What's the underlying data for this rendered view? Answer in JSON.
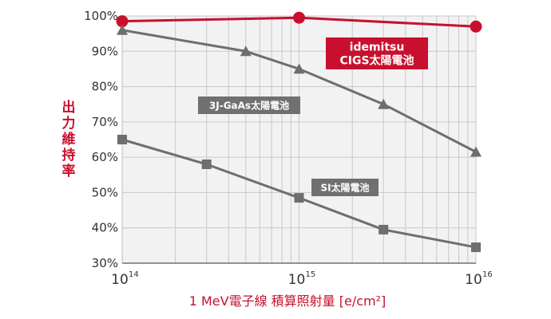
{
  "chart_data": {
    "type": "line",
    "title": "",
    "xlabel": "1 MeV電子線 積算照射量 [e/cm²]",
    "ylabel": "出力維持率",
    "x_scale": "log",
    "xlim": [
      100000000000000.0,
      1e+16
    ],
    "ylim": [
      30,
      100
    ],
    "x_ticks": [
      {
        "value": 100000000000000.0,
        "base": "10",
        "exp": "14"
      },
      {
        "value": 1000000000000000.0,
        "base": "10",
        "exp": "15"
      },
      {
        "value": 1e+16,
        "base": "10",
        "exp": "16"
      }
    ],
    "y_ticks": [
      "30%",
      "40%",
      "50%",
      "60%",
      "70%",
      "80%",
      "90%",
      "100%"
    ],
    "y_tick_values": [
      30,
      40,
      50,
      60,
      70,
      80,
      90,
      100
    ],
    "grid": true,
    "series": [
      {
        "name": "idemitsu\nCIGS太陽電池",
        "marker": "circle",
        "color": "#c8102e",
        "label_box_color": "#c8102e",
        "x": [
          100000000000000.0,
          1000000000000000.0,
          1e+16
        ],
        "y": [
          98.5,
          99.5,
          97
        ]
      },
      {
        "name": "3J-GaAs太陽電池",
        "marker": "triangle",
        "color": "#6e6e6e",
        "label_box_color": "#707070",
        "x": [
          100000000000000.0,
          500000000000000.0,
          1000000000000000.0,
          3000000000000000.0,
          1e+16
        ],
        "y": [
          96,
          90,
          85,
          75,
          61.5
        ]
      },
      {
        "name": "SI太陽電池",
        "marker": "square",
        "color": "#6e6e6e",
        "label_box_color": "#707070",
        "x": [
          100000000000000.0,
          300000000000000.0,
          1000000000000000.0,
          3000000000000000.0,
          1e+16
        ],
        "y": [
          65,
          58,
          48.5,
          39.5,
          34.5
        ]
      }
    ]
  },
  "colors": {
    "accent": "#c8102e",
    "plot_bg": "#f2f2f2",
    "grid": "#c8c8c8",
    "gray_series": "#6e6e6e"
  }
}
